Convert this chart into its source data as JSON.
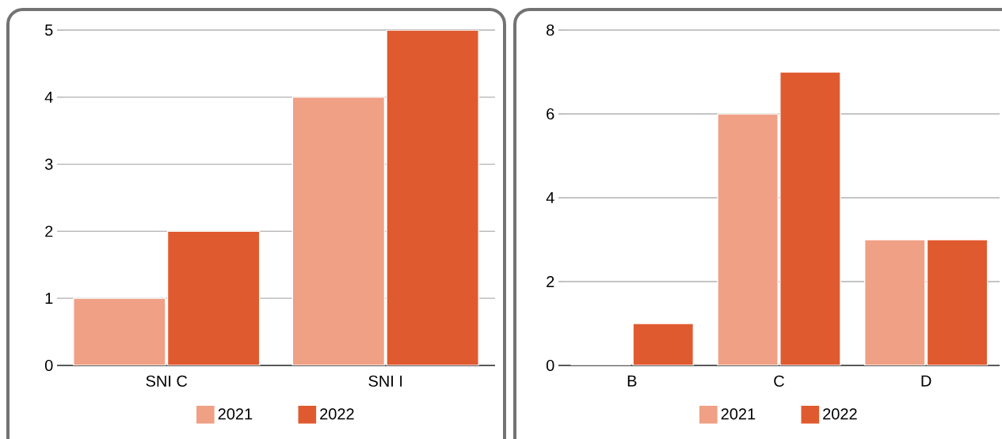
{
  "chart_data": [
    {
      "type": "bar",
      "categories": [
        "SNI C",
        "SNI I"
      ],
      "series": [
        {
          "name": "2021",
          "color": "#f0a085",
          "values": [
            1,
            4
          ]
        },
        {
          "name": "2022",
          "color": "#e05a2f",
          "values": [
            2,
            5
          ]
        }
      ],
      "ylim": [
        0,
        5
      ],
      "yticks": [
        0,
        1,
        2,
        3,
        4,
        5
      ],
      "grid": "y",
      "legend": "bottom"
    },
    {
      "type": "bar",
      "categories": [
        "B",
        "C",
        "D"
      ],
      "series": [
        {
          "name": "2021",
          "color": "#f0a085",
          "values": [
            0,
            6,
            3
          ]
        },
        {
          "name": "2022",
          "color": "#e05a2f",
          "values": [
            1,
            7,
            3
          ]
        }
      ],
      "ylim": [
        0,
        8
      ],
      "yticks": [
        0,
        2,
        4,
        6,
        8
      ],
      "grid": "y",
      "legend": "bottom"
    }
  ]
}
